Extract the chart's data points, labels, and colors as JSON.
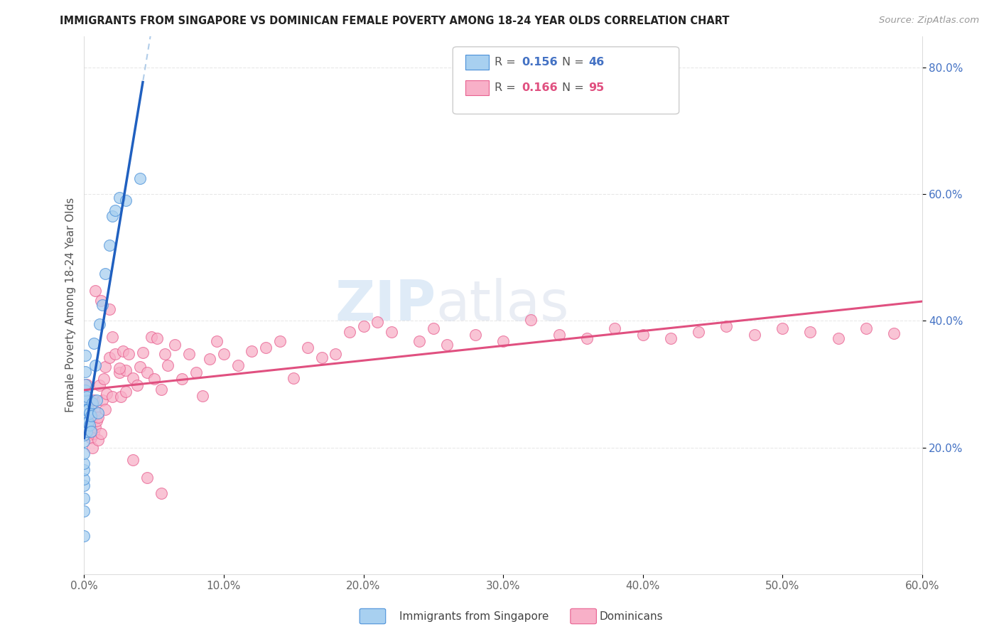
{
  "title": "IMMIGRANTS FROM SINGAPORE VS DOMINICAN FEMALE POVERTY AMONG 18-24 YEAR OLDS CORRELATION CHART",
  "source": "Source: ZipAtlas.com",
  "ylabel": "Female Poverty Among 18-24 Year Olds",
  "xlim": [
    0.0,
    0.6
  ],
  "ylim": [
    0.0,
    0.85
  ],
  "xtick_labels": [
    "0.0%",
    "10.0%",
    "20.0%",
    "30.0%",
    "40.0%",
    "50.0%",
    "60.0%"
  ],
  "xtick_vals": [
    0.0,
    0.1,
    0.2,
    0.3,
    0.4,
    0.5,
    0.6
  ],
  "ytick_labels": [
    "20.0%",
    "40.0%",
    "60.0%",
    "80.0%"
  ],
  "ytick_vals": [
    0.2,
    0.4,
    0.6,
    0.8
  ],
  "legend_R1": "R = 0.156",
  "legend_N1": "N = 46",
  "legend_R2": "R = 0.166",
  "legend_N2": "N = 95",
  "legend_label1": "Immigrants from Singapore",
  "legend_label2": "Dominicans",
  "color_blue_fill": "#a8d0f0",
  "color_blue_edge": "#4a90d9",
  "color_blue_line": "#2060c0",
  "color_blue_dashed": "#90b8e0",
  "color_pink_fill": "#f8b0c8",
  "color_pink_edge": "#e86090",
  "color_pink_line": "#e05080",
  "watermark_color": "#d8e8f8",
  "background_color": "#ffffff",
  "grid_color": "#e8e8e8",
  "singapore_x": [
    0.0,
    0.0,
    0.0,
    0.0,
    0.0,
    0.0,
    0.0,
    0.0,
    0.0,
    0.0,
    0.0,
    0.0,
    0.0,
    0.0,
    0.001,
    0.001,
    0.001,
    0.001,
    0.001,
    0.001,
    0.001,
    0.001,
    0.002,
    0.002,
    0.002,
    0.002,
    0.003,
    0.003,
    0.004,
    0.004,
    0.005,
    0.005,
    0.006,
    0.007,
    0.008,
    0.009,
    0.01,
    0.011,
    0.013,
    0.015,
    0.018,
    0.02,
    0.022,
    0.025,
    0.03,
    0.04
  ],
  "singapore_y": [
    0.06,
    0.1,
    0.12,
    0.14,
    0.15,
    0.165,
    0.175,
    0.19,
    0.21,
    0.22,
    0.235,
    0.25,
    0.26,
    0.275,
    0.23,
    0.245,
    0.26,
    0.275,
    0.29,
    0.3,
    0.32,
    0.345,
    0.225,
    0.24,
    0.26,
    0.28,
    0.24,
    0.26,
    0.235,
    0.255,
    0.225,
    0.25,
    0.27,
    0.365,
    0.33,
    0.275,
    0.255,
    0.395,
    0.425,
    0.475,
    0.52,
    0.565,
    0.575,
    0.595,
    0.59,
    0.625
  ],
  "dominican_x": [
    0.001,
    0.001,
    0.002,
    0.002,
    0.003,
    0.003,
    0.003,
    0.004,
    0.004,
    0.005,
    0.005,
    0.005,
    0.006,
    0.006,
    0.007,
    0.007,
    0.008,
    0.008,
    0.009,
    0.01,
    0.01,
    0.011,
    0.012,
    0.013,
    0.014,
    0.015,
    0.015,
    0.016,
    0.018,
    0.02,
    0.02,
    0.022,
    0.025,
    0.026,
    0.028,
    0.03,
    0.03,
    0.032,
    0.035,
    0.038,
    0.04,
    0.042,
    0.045,
    0.048,
    0.05,
    0.052,
    0.055,
    0.058,
    0.06,
    0.065,
    0.07,
    0.075,
    0.08,
    0.085,
    0.09,
    0.095,
    0.1,
    0.11,
    0.12,
    0.13,
    0.14,
    0.15,
    0.16,
    0.17,
    0.18,
    0.19,
    0.2,
    0.21,
    0.22,
    0.24,
    0.25,
    0.26,
    0.28,
    0.3,
    0.32,
    0.34,
    0.36,
    0.38,
    0.4,
    0.42,
    0.44,
    0.46,
    0.48,
    0.5,
    0.52,
    0.54,
    0.56,
    0.58,
    0.008,
    0.012,
    0.018,
    0.025,
    0.035,
    0.045,
    0.055
  ],
  "dominican_y": [
    0.245,
    0.265,
    0.275,
    0.3,
    0.225,
    0.25,
    0.27,
    0.22,
    0.25,
    0.215,
    0.23,
    0.255,
    0.2,
    0.248,
    0.222,
    0.275,
    0.232,
    0.258,
    0.242,
    0.212,
    0.248,
    0.298,
    0.222,
    0.275,
    0.308,
    0.328,
    0.26,
    0.285,
    0.342,
    0.375,
    0.28,
    0.348,
    0.318,
    0.28,
    0.352,
    0.322,
    0.288,
    0.348,
    0.31,
    0.298,
    0.328,
    0.35,
    0.318,
    0.375,
    0.308,
    0.372,
    0.292,
    0.348,
    0.33,
    0.362,
    0.308,
    0.348,
    0.318,
    0.282,
    0.34,
    0.368,
    0.348,
    0.33,
    0.352,
    0.358,
    0.368,
    0.31,
    0.358,
    0.342,
    0.348,
    0.382,
    0.392,
    0.398,
    0.382,
    0.368,
    0.388,
    0.362,
    0.378,
    0.368,
    0.402,
    0.378,
    0.372,
    0.388,
    0.378,
    0.372,
    0.382,
    0.392,
    0.378,
    0.388,
    0.382,
    0.372,
    0.388,
    0.38,
    0.448,
    0.432,
    0.418,
    0.325,
    0.18,
    0.152,
    0.128
  ]
}
